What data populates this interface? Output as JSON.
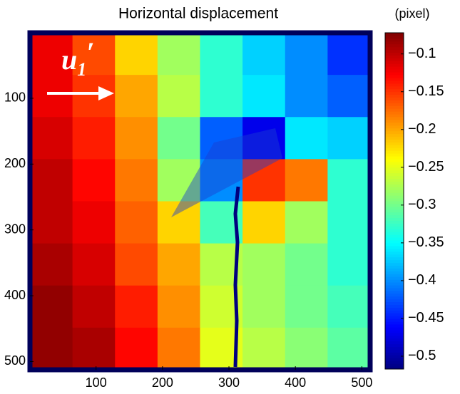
{
  "chart_data": {
    "type": "heatmap",
    "title": "Horizontal displacement",
    "colorbar_label": "(pixel)",
    "annotation": {
      "base": "u",
      "sub": "1",
      "prime": "′"
    },
    "xlim": [
      0.5,
      512.5
    ],
    "ylim": [
      0.5,
      512.5
    ],
    "y_reversed": true,
    "xticks": [
      100,
      200,
      300,
      400,
      500
    ],
    "yticks": [
      100,
      200,
      300,
      400,
      500
    ],
    "colormap": "jet",
    "clim": [
      -0.517,
      -0.072
    ],
    "cticks": [
      {
        "value": -0.1,
        "label": "−0.1"
      },
      {
        "value": -0.15,
        "label": "−0.15"
      },
      {
        "value": -0.2,
        "label": "−0.2"
      },
      {
        "value": -0.25,
        "label": "−0.25"
      },
      {
        "value": -0.3,
        "label": "−0.3"
      },
      {
        "value": -0.35,
        "label": "−0.35"
      },
      {
        "value": -0.4,
        "label": "−0.4"
      },
      {
        "value": -0.45,
        "label": "−0.45"
      },
      {
        "value": -0.5,
        "label": "−0.5"
      }
    ],
    "z": [
      [
        -0.12,
        -0.16,
        -0.22,
        -0.28,
        -0.33,
        -0.37,
        -0.4,
        -0.44
      ],
      [
        -0.12,
        -0.15,
        -0.2,
        -0.27,
        -0.33,
        -0.36,
        -0.4,
        -0.42
      ],
      [
        -0.11,
        -0.14,
        -0.19,
        -0.3,
        -0.42,
        -0.47,
        -0.36,
        -0.37
      ],
      [
        -0.1,
        -0.13,
        -0.18,
        -0.28,
        -0.4,
        -0.15,
        -0.18,
        -0.33
      ],
      [
        -0.1,
        -0.12,
        -0.17,
        -0.22,
        -0.32,
        -0.22,
        -0.28,
        -0.33
      ],
      [
        -0.09,
        -0.11,
        -0.16,
        -0.2,
        -0.27,
        -0.28,
        -0.3,
        -0.33
      ],
      [
        -0.08,
        -0.1,
        -0.14,
        -0.19,
        -0.26,
        -0.28,
        -0.3,
        -0.32
      ],
      [
        -0.08,
        -0.09,
        -0.13,
        -0.18,
        -0.25,
        -0.27,
        -0.29,
        -0.31
      ]
    ]
  }
}
